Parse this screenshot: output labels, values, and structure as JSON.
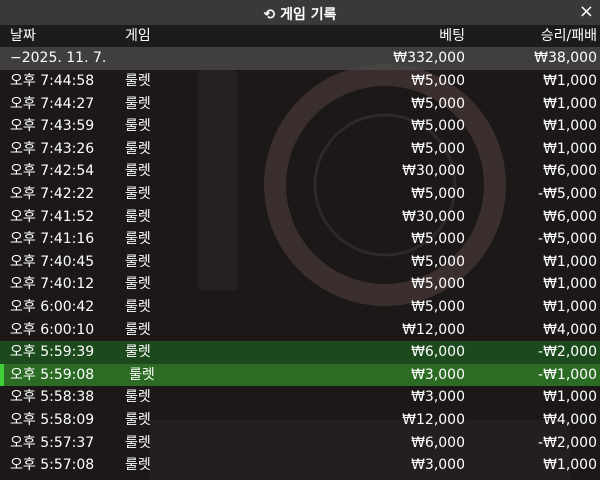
{
  "header": {
    "title": "게임 기록",
    "close": "×"
  },
  "table": {
    "columns": [
      "날짜",
      "게임",
      "베팅",
      "승리/패배"
    ],
    "group": {
      "date": "−2025. 11. 7.",
      "bet": "₩332,000",
      "result": "₩38,000"
    },
    "rows": [
      [
        "오후 7:44:58",
        "룰렛",
        "₩5,000",
        "₩1,000"
      ],
      [
        "오후 7:44:27",
        "룰렛",
        "₩5,000",
        "₩1,000"
      ],
      [
        "오후 7:43:59",
        "룰렛",
        "₩5,000",
        "₩1,000"
      ],
      [
        "오후 7:43:26",
        "룰렛",
        "₩5,000",
        "₩1,000"
      ],
      [
        "오후 7:42:54",
        "룰렛",
        "₩30,000",
        "₩6,000"
      ],
      [
        "오후 7:42:22",
        "룰렛",
        "₩5,000",
        "-₩5,000"
      ],
      [
        "오후 7:41:52",
        "룰렛",
        "₩30,000",
        "₩6,000"
      ],
      [
        "오후 7:41:16",
        "룰렛",
        "₩5,000",
        "-₩5,000"
      ],
      [
        "오후 7:40:45",
        "룰렛",
        "₩5,000",
        "₩1,000"
      ],
      [
        "오후 7:40:12",
        "룰렛",
        "₩5,000",
        "₩1,000"
      ],
      [
        "오후 6:00:42",
        "룰렛",
        "₩5,000",
        "₩1,000"
      ],
      [
        "오후 6:00:10",
        "룰렛",
        "₩12,000",
        "₩4,000"
      ],
      [
        "오후 5:59:39",
        "룰렛",
        "₩6,000",
        "-₩2,000"
      ],
      [
        "오후 5:59:08",
        "룰렛",
        "₩3,000",
        "-₩1,000"
      ],
      [
        "오후 5:58:38",
        "룰렛",
        "₩3,000",
        "₩1,000"
      ],
      [
        "오후 5:58:09",
        "룰렛",
        "₩12,000",
        "₩4,000"
      ],
      [
        "오후 5:57:37",
        "룰렛",
        "₩6,000",
        "-₩2,000"
      ],
      [
        "오후 5:57:08",
        "룰렛",
        "₩3,000",
        "₩1,000"
      ]
    ]
  }
}
